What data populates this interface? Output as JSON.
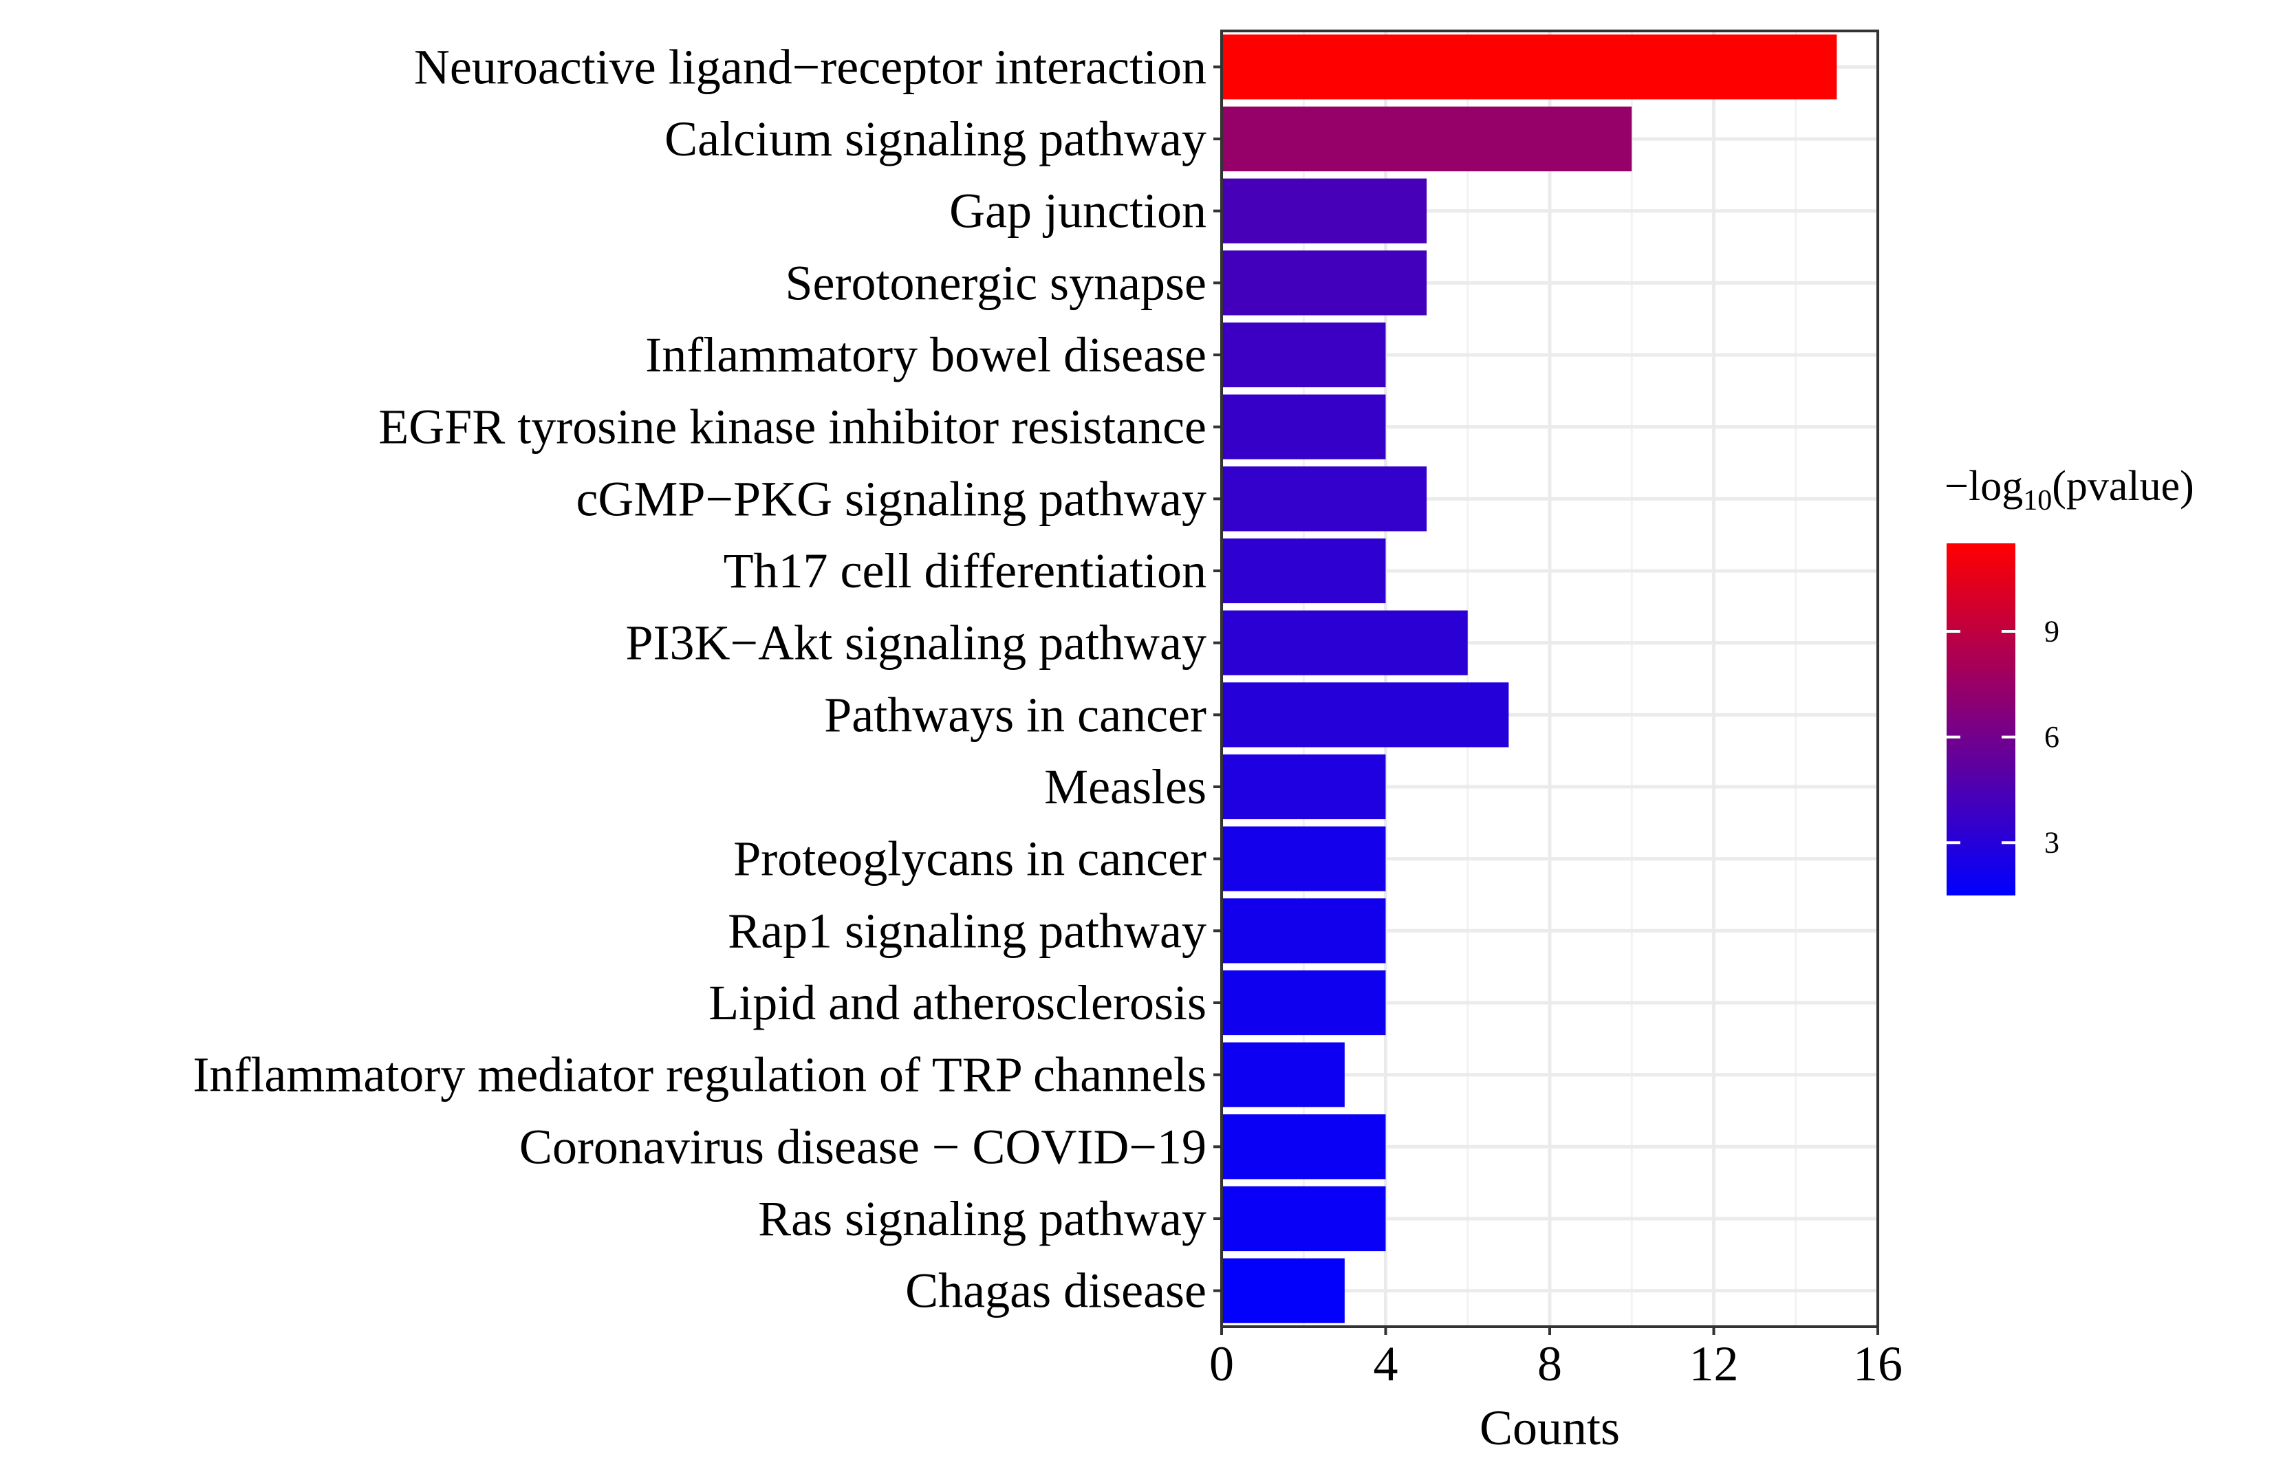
{
  "chart_data": {
    "type": "bar",
    "orientation": "horizontal",
    "categories": [
      "Neuroactive ligand−receptor interaction",
      "Calcium signaling pathway",
      "Gap junction",
      "Serotonergic synapse",
      "Inflammatory bowel disease",
      "EGFR tyrosine kinase inhibitor resistance",
      "cGMP−PKG signaling pathway",
      "Th17 cell differentiation",
      "PI3K−Akt signaling pathway",
      "Pathways in cancer",
      "Measles",
      "Proteoglycans in cancer",
      "Rap1 signaling pathway",
      "Lipid and atherosclerosis",
      "Inflammatory mediator regulation of TRP channels",
      "Coronavirus disease − COVID−19",
      "Ras signaling pathway",
      "Chagas disease"
    ],
    "values": [
      15,
      10,
      5,
      5,
      4,
      4,
      5,
      4,
      6,
      7,
      4,
      4,
      4,
      4,
      3,
      4,
      4,
      3
    ],
    "color_values": [
      11.5,
      7.4,
      4.3,
      4.1,
      3.8,
      3.6,
      3.5,
      3.3,
      3.2,
      3.0,
      2.7,
      2.3,
      2.2,
      2.1,
      2.0,
      1.9,
      1.8,
      1.6
    ],
    "xlabel": "Counts",
    "ylabel": "",
    "xlim": [
      0,
      16
    ],
    "xticks": [
      "0",
      "4",
      "8",
      "12",
      "16"
    ],
    "grid": true,
    "legend": {
      "title_prefix": "−log",
      "title_subscript": "10",
      "title_suffix": "(pvalue)",
      "range": [
        1.5,
        11.5
      ],
      "ticks": [
        3,
        6,
        9
      ],
      "tick_labels": [
        "3",
        "6",
        "9"
      ],
      "color_low": "#0000FF",
      "color_high": "#FF0000",
      "placement": "right"
    }
  }
}
